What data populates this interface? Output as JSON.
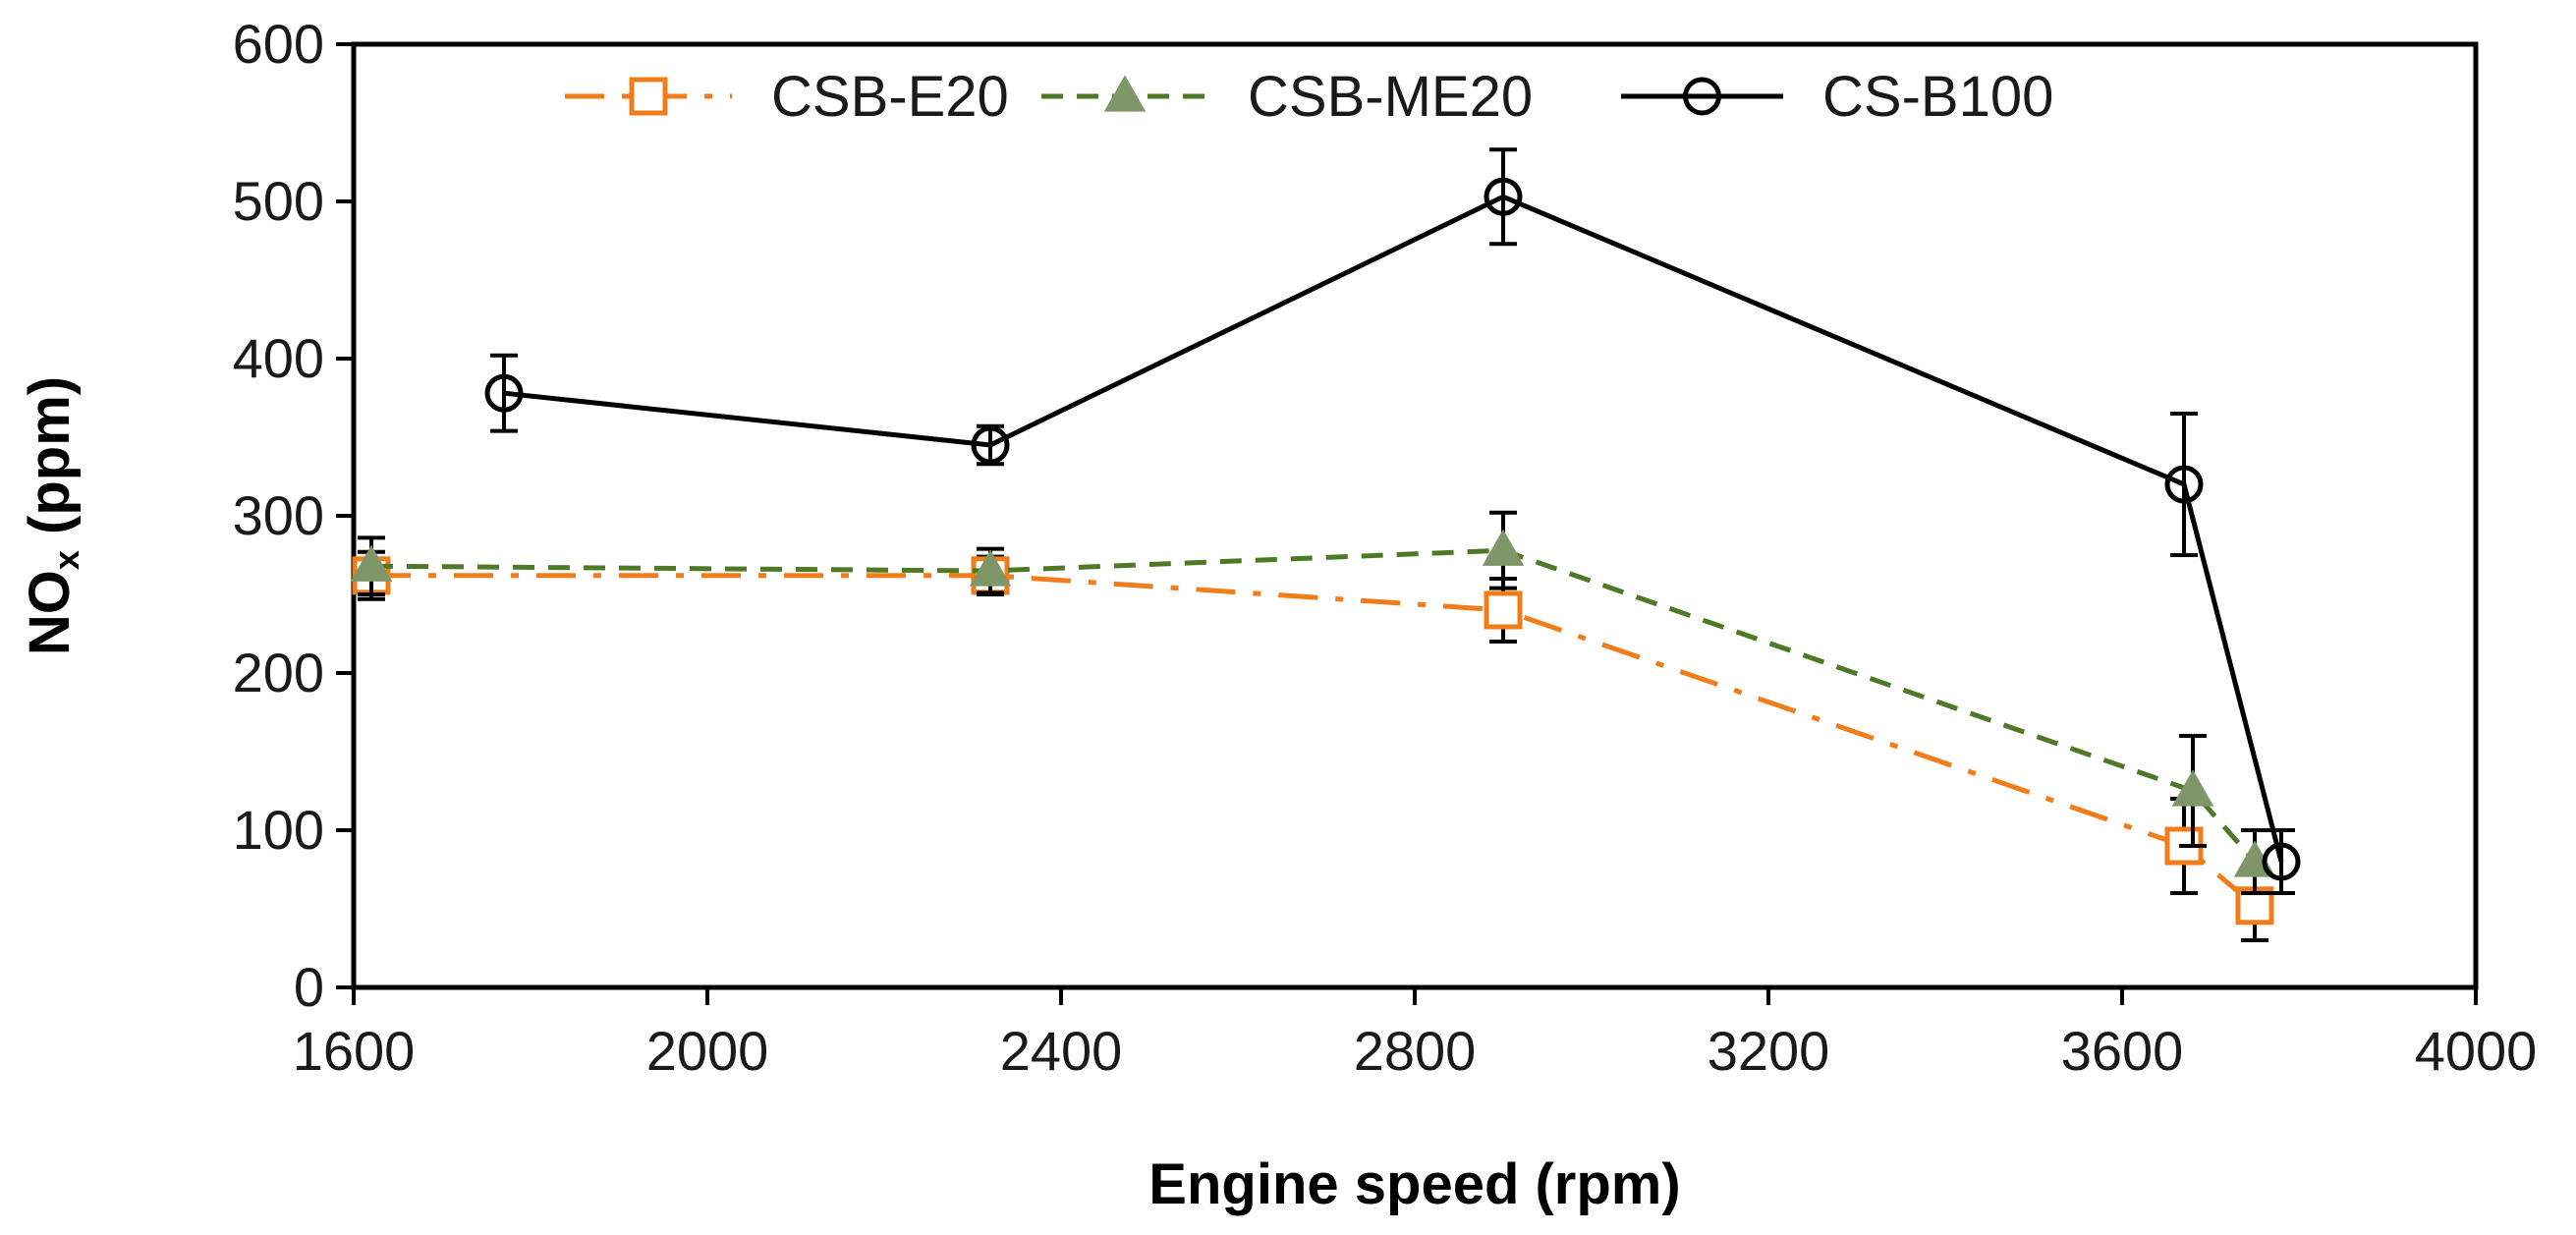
{
  "chart_data": {
    "type": "line",
    "title": "",
    "xlabel": "Engine speed (rpm)",
    "ylabel_main": "NO",
    "ylabel_sub": "x",
    "ylabel_tail": " (ppm)",
    "xlim": [
      1600,
      4000
    ],
    "ylim": [
      0,
      600
    ],
    "xticks": [
      1600,
      2000,
      2400,
      2800,
      3200,
      3600,
      4000
    ],
    "yticks": [
      0,
      100,
      200,
      300,
      400,
      500,
      600
    ],
    "grid": false,
    "legend_position": "top",
    "series": [
      {
        "name": "CSB-E20",
        "marker": "square-open",
        "line_style": "dash-dot",
        "color": "#f07d1a",
        "x": [
          1620,
          2320,
          2900,
          3670,
          3750
        ],
        "y": [
          262,
          262,
          240,
          90,
          52
        ],
        "err": [
          15,
          12,
          20,
          30,
          22
        ]
      },
      {
        "name": "CSB-ME20",
        "marker": "triangle-filled",
        "line_style": "dashed",
        "color": "#4e7a25",
        "marker_color": "#7f9668",
        "x": [
          1620,
          2320,
          2900,
          3680,
          3750
        ],
        "y": [
          268,
          265,
          278,
          125,
          80
        ],
        "err": [
          18,
          14,
          24,
          35,
          20
        ]
      },
      {
        "name": "CS-B100",
        "marker": "circle-open",
        "line_style": "solid",
        "color": "#000000",
        "x": [
          1770,
          2320,
          2900,
          3670,
          3780
        ],
        "y": [
          378,
          345,
          503,
          320,
          80
        ],
        "err": [
          24,
          12,
          30,
          45,
          20
        ]
      }
    ]
  }
}
